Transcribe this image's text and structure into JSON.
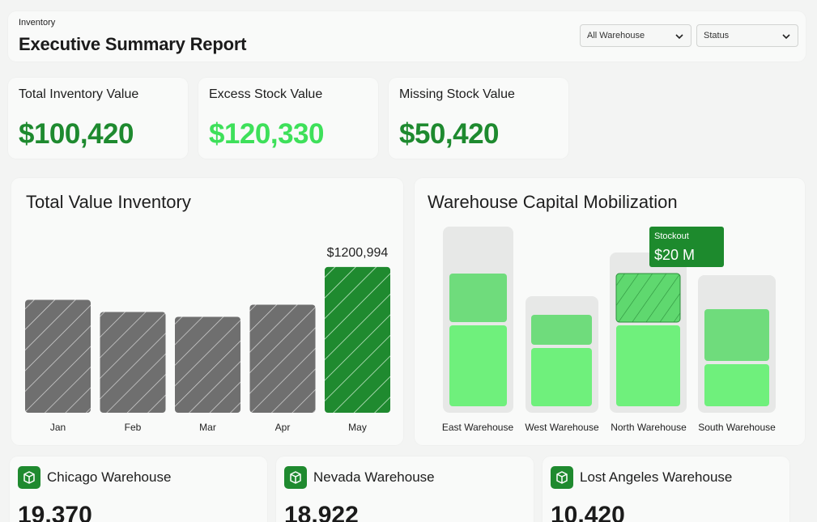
{
  "header": {
    "breadcrumb": "Inventory",
    "title": "Executive Summary Report",
    "filters": [
      {
        "selected": "All Warehouse"
      },
      {
        "selected": "Status"
      }
    ]
  },
  "kpis": [
    {
      "label": "Total Inventory Value",
      "value": "$100,420",
      "color": "#1e8a2f"
    },
    {
      "label": "Excess Stock Value",
      "value": "$120,330",
      "color": "#3ee05a"
    },
    {
      "label": "Missing Stock Value",
      "value": "$50,420",
      "color": "#1e8a2f"
    }
  ],
  "colors": {
    "dark_green": "#1f8a2f",
    "bright_green": "#3ee05a",
    "gray_bar": "#6f6f6f"
  },
  "chart_data": [
    {
      "type": "bar",
      "title": "Total Value Inventory",
      "categories": [
        "Jan",
        "Feb",
        "Mar",
        "Apr",
        "May"
      ],
      "values": [
        930000,
        830000,
        790000,
        890000,
        1200994
      ],
      "highlight_index": 4,
      "highlight_label": "$1200,994",
      "ylim": [
        0,
        1300000
      ]
    },
    {
      "type": "bar",
      "title": "Warehouse Capital Mobilization",
      "categories": [
        "East Warehouse",
        "West Warehouse",
        "North Warehouse",
        "South Warehouse"
      ],
      "stacked": true,
      "tooltip": {
        "label": "Stockout",
        "value": "$20 M",
        "category": "North Warehouse"
      }
    }
  ],
  "warehouses": [
    {
      "name": "Chicago Warehouse",
      "value": "19,370",
      "icon": "box-icon"
    },
    {
      "name": "Nevada Warehouse",
      "value": "18,922",
      "icon": "box-icon"
    },
    {
      "name": "Lost Angeles Warehouse",
      "value": "10,420",
      "icon": "box-icon"
    }
  ]
}
